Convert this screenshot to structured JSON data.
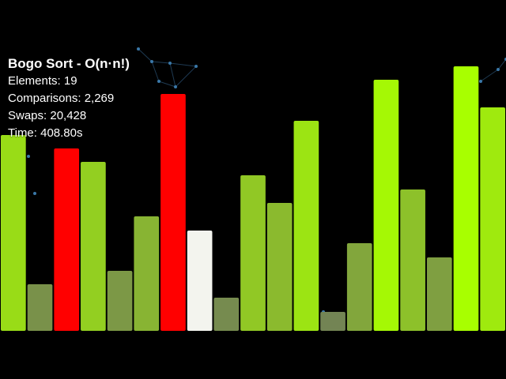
{
  "overlay": {
    "title": "Bogo Sort - O(n·n!)",
    "elements": "Elements: 19",
    "comparisons": "Comparisons: 2,269",
    "swaps": "Swaps: 20,428",
    "time": "Time: 408.80s"
  },
  "chart_data": {
    "type": "bar",
    "grid": false,
    "legend": "none",
    "ylim": [
      0,
      335
    ],
    "values": [
      248,
      59,
      231,
      214,
      76,
      145,
      300,
      127,
      42,
      197,
      162,
      266,
      24,
      111,
      318,
      179,
      93,
      335,
      283
    ],
    "states": [
      "normal",
      "normal",
      "compare",
      "normal",
      "normal",
      "normal",
      "compare",
      "pivot",
      "normal",
      "normal",
      "normal",
      "normal",
      "normal",
      "normal",
      "normal",
      "normal",
      "normal",
      "normal",
      "normal"
    ]
  },
  "colors": {
    "background": "#000000",
    "compare": "#ff0000",
    "pivot": "#f3f4ee",
    "low": "#6f7a5a",
    "high": "#a8ff00",
    "network": "#1e3a52",
    "node": "#3a78a8"
  }
}
